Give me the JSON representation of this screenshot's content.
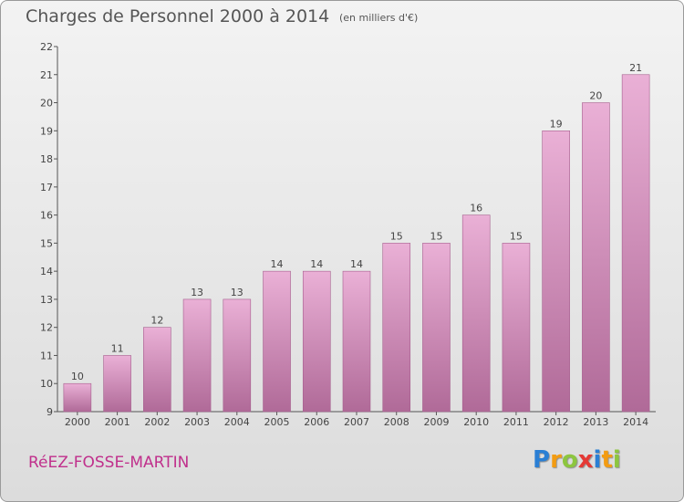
{
  "header": {
    "title": "Charges de Personnel 2000 à 2014",
    "subtitle": "(en milliers d'€)"
  },
  "footer": {
    "commune": "RéEZ-FOSSE-MARTIN",
    "logo": {
      "text": "Proxiti",
      "letters": [
        "P",
        "r",
        "o",
        "x",
        "i",
        "t",
        "i"
      ],
      "colors": [
        "#2a7fd4",
        "#f39c12",
        "#8dc63f",
        "#e53935",
        "#2a7fd4",
        "#f39c12",
        "#8dc63f"
      ]
    }
  },
  "colors": {
    "bar_top": "#eab0d6",
    "bar_bottom": "#b06a98",
    "title": "#555555",
    "commune": "#c0308c"
  },
  "chart_data": {
    "type": "bar",
    "title": "Charges de Personnel 2000 à 2014",
    "subtitle": "(en milliers d'€)",
    "categories": [
      "2000",
      "2001",
      "2002",
      "2003",
      "2004",
      "2005",
      "2006",
      "2007",
      "2008",
      "2009",
      "2010",
      "2011",
      "2012",
      "2013",
      "2014"
    ],
    "values": [
      10,
      11,
      12,
      13,
      13,
      14,
      14,
      14,
      15,
      15,
      16,
      15,
      19,
      20,
      21
    ],
    "value_labels": [
      "10",
      "11",
      "12",
      "13",
      "13",
      "14",
      "14",
      "14",
      "15",
      "15",
      "16",
      "15",
      "19",
      "20",
      "21"
    ],
    "ylim": [
      9,
      22
    ],
    "yticks": [
      9,
      10,
      11,
      12,
      13,
      14,
      15,
      16,
      17,
      18,
      19,
      20,
      21,
      22
    ],
    "ytick_labels": [
      "9",
      "10",
      "11",
      "12",
      "13",
      "14",
      "15",
      "16",
      "17",
      "18",
      "19",
      "20",
      "21",
      "22"
    ],
    "xlabel": "",
    "ylabel": "",
    "grid": false,
    "legend": "none"
  }
}
